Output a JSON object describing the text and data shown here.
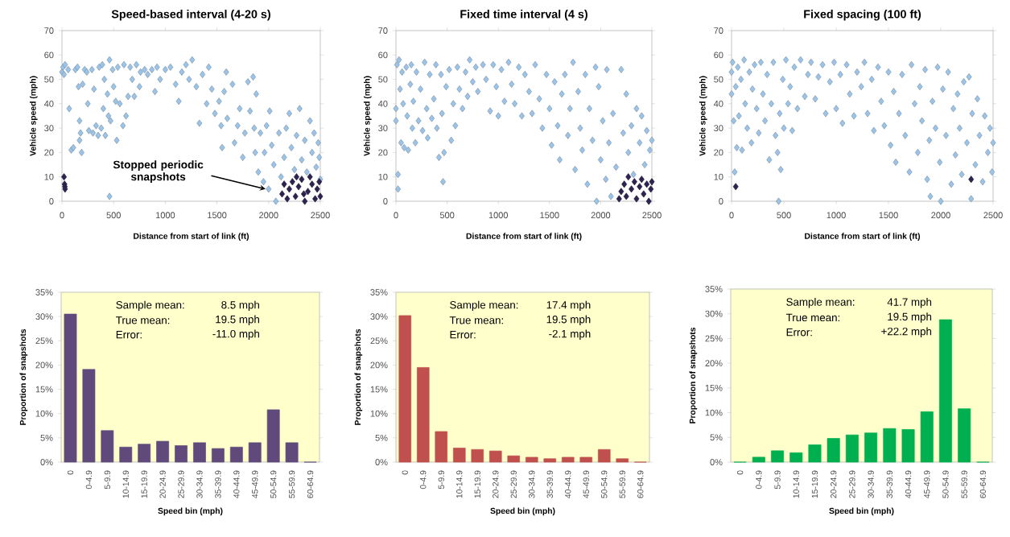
{
  "chart_data": [
    {
      "type": "scatter",
      "title": "Speed-based interval (4-20 s)",
      "xlabel": "Distance from start of link (ft)",
      "ylabel": "Vehicle speed (mph)",
      "marker": "diamond",
      "xlim": [
        0,
        2500
      ],
      "xticks": [
        0,
        500,
        1000,
        1500,
        2000,
        2500
      ],
      "ylim": [
        0,
        70
      ],
      "yticks": [
        0,
        10,
        20,
        30,
        40,
        50,
        60,
        70
      ],
      "annotations": [
        {
          "text": "Stopped periodic snapshots",
          "x": 1970,
          "y": 5
        }
      ],
      "series": [
        {
          "color": "#9dc3e6",
          "x": [
            0,
            10,
            20,
            30,
            60,
            70,
            90,
            110,
            130,
            150,
            160,
            170,
            170,
            180,
            190,
            200,
            220,
            240,
            250,
            260,
            290,
            300,
            310,
            330,
            350,
            360,
            380,
            390,
            400,
            410,
            420,
            440,
            450,
            460,
            460,
            470,
            490,
            500,
            520,
            530,
            540,
            560,
            590,
            600,
            620,
            640,
            660,
            680,
            700,
            720,
            750,
            760,
            800,
            830,
            870,
            900,
            920,
            950,
            1000,
            1050,
            1100,
            1130,
            1160,
            1200,
            1230,
            1260,
            1300,
            1330,
            1360,
            1400,
            1420,
            1450,
            1480,
            1520,
            1540,
            1550,
            1570,
            1590,
            1600,
            1650,
            1670,
            1700,
            1720,
            1750,
            1770,
            1800,
            1820,
            1850,
            1860,
            1870,
            1880,
            1900,
            1920,
            1950,
            1960,
            1980,
            2000,
            2010,
            2030,
            2050,
            2070,
            2100,
            2120,
            2150,
            2170,
            2200,
            2220,
            2250,
            2270,
            2300,
            2320,
            2350,
            2370,
            2400,
            2420,
            2440,
            2460,
            2480,
            2490,
            2500
          ],
          "values": [
            53,
            55,
            52,
            56,
            54,
            38,
            21,
            22,
            54,
            55,
            47,
            33,
            25,
            28,
            20,
            48,
            54,
            53,
            40,
            29,
            54,
            28,
            46,
            31,
            27,
            55,
            30,
            56,
            38,
            50,
            27,
            44,
            35,
            58,
            2,
            33,
            54,
            47,
            41,
            25,
            55,
            40,
            31,
            56,
            35,
            43,
            55,
            50,
            43,
            56,
            47,
            53,
            54,
            52,
            54,
            45,
            55,
            50,
            54,
            55,
            48,
            41,
            53,
            56,
            50,
            58,
            47,
            32,
            52,
            40,
            55,
            46,
            36,
            41,
            31,
            22,
            45,
            53,
            34,
            48,
            24,
            31,
            38,
            18,
            28,
            49,
            37,
            51,
            30,
            20,
            44,
            12,
            28,
            8,
            20,
            31,
            5,
            37,
            23,
            15,
            0,
            28,
            10,
            18,
            30,
            36,
            22,
            13,
            27,
            38,
            17,
            25,
            12,
            33,
            20,
            28,
            14,
            24,
            18,
            9
          ]
        },
        {
          "color": "#2e2350",
          "x": [
            20,
            25,
            28,
            30,
            2130,
            2150,
            2180,
            2200,
            2230,
            2260,
            2270,
            2290,
            2320,
            2340,
            2350,
            2380,
            2400,
            2420,
            2450,
            2470,
            2490,
            2500
          ],
          "values": [
            10,
            7,
            6,
            5,
            3,
            7,
            1,
            5,
            8,
            2,
            10,
            6,
            9,
            3,
            0,
            4,
            10,
            7,
            1,
            5,
            8,
            2
          ]
        }
      ]
    },
    {
      "type": "scatter",
      "title": "Fixed time interval (4 s)",
      "xlabel": "Distance from start of link (ft)",
      "ylabel": "Vehicle speed (mph)",
      "marker": "diamond",
      "xlim": [
        0,
        2500
      ],
      "xticks": [
        0,
        500,
        1000,
        1500,
        2000,
        2500
      ],
      "ylim": [
        0,
        70
      ],
      "yticks": [
        0,
        10,
        20,
        30,
        40,
        50,
        60,
        70
      ],
      "series": [
        {
          "color": "#9dc3e6",
          "x": [
            0,
            0,
            10,
            20,
            20,
            30,
            40,
            50,
            60,
            70,
            80,
            100,
            110,
            120,
            140,
            150,
            160,
            170,
            190,
            200,
            220,
            240,
            260,
            280,
            300,
            310,
            330,
            350,
            370,
            390,
            400,
            420,
            440,
            450,
            460,
            470,
            490,
            520,
            540,
            560,
            580,
            600,
            620,
            650,
            680,
            700,
            720,
            750,
            780,
            800,
            850,
            880,
            920,
            950,
            980,
            1000,
            1030,
            1060,
            1100,
            1130,
            1160,
            1200,
            1230,
            1260,
            1300,
            1330,
            1360,
            1400,
            1430,
            1470,
            1500,
            1520,
            1550,
            1580,
            1600,
            1620,
            1650,
            1680,
            1700,
            1730,
            1750,
            1780,
            1800,
            1820,
            1850,
            1870,
            1890,
            1920,
            1950,
            1960,
            1980,
            2000,
            2020,
            2050,
            2060,
            2080,
            2100,
            2120,
            2150,
            2200,
            2220,
            2250,
            2270,
            2300,
            2320,
            2350,
            2380,
            2400,
            2430,
            2450,
            2480,
            2500
          ],
          "values": [
            38,
            33,
            56,
            11,
            5,
            58,
            46,
            24,
            53,
            40,
            22,
            55,
            35,
            21,
            48,
            56,
            30,
            41,
            24,
            53,
            33,
            46,
            29,
            57,
            38,
            26,
            52,
            34,
            42,
            56,
            30,
            18,
            52,
            36,
            8,
            20,
            47,
            54,
            25,
            40,
            31,
            55,
            46,
            38,
            53,
            43,
            58,
            49,
            55,
            45,
            56,
            50,
            37,
            56,
            47,
            35,
            54,
            41,
            57,
            48,
            40,
            55,
            35,
            52,
            45,
            36,
            56,
            42,
            30,
            52,
            38,
            23,
            49,
            31,
            17,
            44,
            52,
            27,
            38,
            57,
            13,
            45,
            30,
            21,
            52,
            7,
            38,
            25,
            55,
            0,
            47,
            17,
            33,
            9,
            54,
            24,
            2,
            36,
            14,
            54,
            28,
            44,
            20,
            31,
            11,
            38,
            24,
            35,
            15,
            29,
            21,
            25
          ]
        },
        {
          "color": "#2e2350",
          "x": [
            2180,
            2200,
            2230,
            2250,
            2270,
            2300,
            2330,
            2350,
            2380,
            2400,
            2420,
            2450,
            2470,
            2490,
            2500
          ],
          "values": [
            1,
            4,
            7,
            2,
            10,
            5,
            8,
            1,
            6,
            9,
            3,
            7,
            0,
            5,
            8
          ]
        }
      ]
    },
    {
      "type": "scatter",
      "title": "Fixed spacing (100 ft)",
      "xlabel": "Distance from start of link (ft)",
      "ylabel": "Vehicle speed (mph)",
      "marker": "diamond",
      "xlim": [
        0,
        2500
      ],
      "xticks": [
        0,
        500,
        1000,
        1500,
        2000,
        2500
      ],
      "ylim": [
        0,
        70
      ],
      "yticks": [
        0,
        10,
        20,
        30,
        40,
        50,
        60,
        70
      ],
      "series": [
        {
          "color": "#9dc3e6",
          "x": [
            0,
            0,
            10,
            20,
            30,
            40,
            50,
            60,
            70,
            90,
            100,
            120,
            130,
            150,
            170,
            190,
            200,
            220,
            240,
            260,
            280,
            300,
            320,
            340,
            360,
            380,
            400,
            420,
            440,
            450,
            460,
            470,
            490,
            500,
            520,
            540,
            560,
            580,
            600,
            630,
            660,
            700,
            730,
            760,
            800,
            830,
            870,
            900,
            940,
            980,
            1000,
            1040,
            1060,
            1100,
            1130,
            1170,
            1200,
            1240,
            1270,
            1300,
            1340,
            1360,
            1400,
            1430,
            1460,
            1500,
            1520,
            1550,
            1570,
            1600,
            1630,
            1660,
            1700,
            1720,
            1750,
            1780,
            1800,
            1820,
            1850,
            1870,
            1890,
            1900,
            1920,
            1950,
            1970,
            1990,
            2000,
            2020,
            2050,
            2070,
            2100,
            2120,
            2140,
            2160,
            2180,
            2200,
            2220,
            2250,
            2270,
            2290,
            2300,
            2330,
            2350,
            2370,
            2400,
            2420,
            2450,
            2470,
            2490,
            2500
          ],
          "values": [
            53,
            44,
            57,
            33,
            12,
            47,
            22,
            55,
            35,
            50,
            21,
            58,
            40,
            30,
            53,
            24,
            46,
            56,
            38,
            28,
            57,
            44,
            33,
            52,
            17,
            40,
            57,
            27,
            20,
            0,
            36,
            13,
            50,
            30,
            58,
            40,
            47,
            29,
            55,
            38,
            58,
            43,
            52,
            57,
            42,
            51,
            56,
            36,
            49,
            57,
            38,
            52,
            32,
            56,
            44,
            35,
            53,
            47,
            57,
            36,
            50,
            29,
            55,
            41,
            31,
            53,
            23,
            45,
            16,
            36,
            52,
            27,
            12,
            56,
            40,
            20,
            47,
            33,
            54,
            9,
            25,
            2,
            41,
            30,
            55,
            16,
            0,
            46,
            27,
            53,
            7,
            38,
            19,
            44,
            30,
            11,
            49,
            24,
            51,
            1,
            36,
            15,
            42,
            27,
            8,
            35,
            20,
            30,
            12,
            24
          ]
        },
        {
          "color": "#2e2350",
          "x": [
            40,
            2290
          ],
          "values": [
            6,
            9
          ]
        }
      ]
    },
    {
      "type": "bar",
      "xlabel": "Speed bin (mph)",
      "ylabel": "Proportion of snapshots",
      "color": "#604a7b",
      "categories": [
        "0",
        "0-4.9",
        "5-9.9",
        "10-14.9",
        "15-19.9",
        "20-24.9",
        "25-29.9",
        "30-34.9",
        "35-39.9",
        "40-44.9",
        "45-49.9",
        "50-54.9",
        "55-59.9",
        "60-64.9"
      ],
      "values": [
        30.5,
        19.1,
        6.5,
        3.1,
        3.7,
        4.3,
        3.4,
        4.0,
        2.8,
        3.1,
        4.0,
        10.8,
        4.0,
        0
      ],
      "ylim": [
        0,
        35
      ],
      "yticks": [
        {
          "value": 0,
          "label": "0%"
        },
        {
          "value": 5,
          "label": "5%"
        },
        {
          "value": 10,
          "label": "10%"
        },
        {
          "value": 15,
          "label": "15%"
        },
        {
          "value": 20,
          "label": "20%"
        },
        {
          "value": 25,
          "label": "25%"
        },
        {
          "value": 30,
          "label": "30%"
        },
        {
          "value": 35,
          "label": "35%"
        }
      ],
      "annotations": [
        "Sample mean:",
        "8.5 mph",
        "True mean:",
        "19.5 mph",
        "Error:",
        "-11.0 mph"
      ]
    },
    {
      "type": "bar",
      "xlabel": "Speed bin (mph)",
      "ylabel": "Proportion of snapshots",
      "color": "#c0504d",
      "categories": [
        "0",
        "0-4.9",
        "5-9.9",
        "10-14.9",
        "15-19.9",
        "20-24.9",
        "25-29.9",
        "30-34.9",
        "35-39.9",
        "40-44.9",
        "45-49.9",
        "50-54.9",
        "55-59.9",
        "60-64.9"
      ],
      "values": [
        30.2,
        19.5,
        6.3,
        2.9,
        2.6,
        2.3,
        1.3,
        1.0,
        0.7,
        1.0,
        1.0,
        2.6,
        0.7,
        0
      ],
      "ylim": [
        0,
        35
      ],
      "yticks": [
        {
          "value": 0,
          "label": "0%"
        },
        {
          "value": 5,
          "label": "5%"
        },
        {
          "value": 10,
          "label": "10%"
        },
        {
          "value": 15,
          "label": "15%"
        },
        {
          "value": 20,
          "label": "20%"
        },
        {
          "value": 25,
          "label": "25%"
        },
        {
          "value": 30,
          "label": "30%"
        },
        {
          "value": 35,
          "label": "35%"
        }
      ],
      "annotations": [
        "Sample mean:",
        "17.4 mph",
        "True mean:",
        "19.5 mph",
        "Error:",
        "-2.1 mph"
      ]
    },
    {
      "type": "bar",
      "xlabel": "Speed bin (mph)",
      "ylabel": "Proportion of snapshots",
      "color": "#00b050",
      "categories": [
        "0",
        "0-4.9",
        "5-9.9",
        "10-14.9",
        "15-19.9",
        "20-24.9",
        "25-29.9",
        "30-34.9",
        "35-39.9",
        "40-44.9",
        "45-49.9",
        "50-54.9",
        "55-59.9",
        "60-64.9"
      ],
      "values": [
        0,
        1.0,
        2.3,
        1.9,
        3.5,
        4.8,
        5.5,
        5.9,
        6.8,
        6.6,
        10.2,
        28.8,
        10.8,
        0
      ],
      "ylim": [
        0,
        35
      ],
      "yticks": [
        {
          "value": 0,
          "label": "0%"
        },
        {
          "value": 5,
          "label": "5%"
        },
        {
          "value": 10,
          "label": "10%"
        },
        {
          "value": 15,
          "label": "15%"
        },
        {
          "value": 20,
          "label": "20%"
        },
        {
          "value": 25,
          "label": "25%"
        },
        {
          "value": 30,
          "label": "30%"
        },
        {
          "value": 35,
          "label": "35%"
        }
      ],
      "annotations": [
        "Sample mean:",
        "41.7 mph",
        "True mean:",
        "19.5 mph",
        "Error:",
        "+22.2 mph"
      ]
    }
  ]
}
